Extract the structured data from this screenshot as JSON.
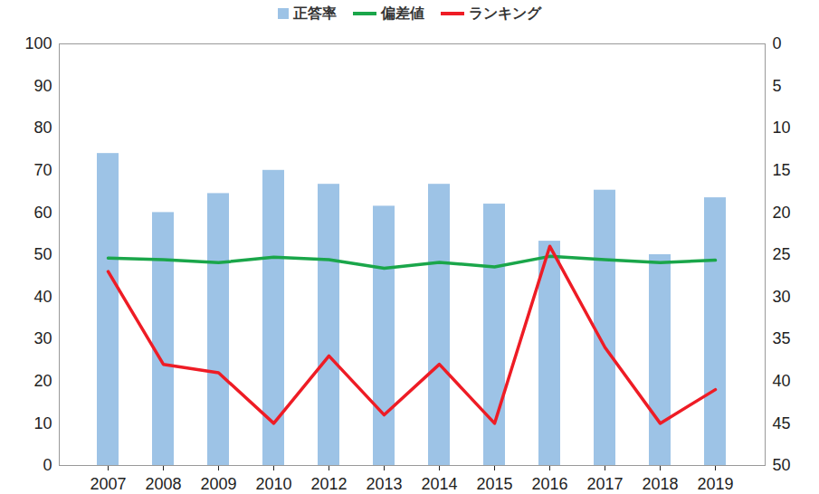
{
  "chart_data": {
    "type": "bar",
    "categories": [
      "2007",
      "2008",
      "2009",
      "2010",
      "2012",
      "2013",
      "2014",
      "2015",
      "2016",
      "2017",
      "2018",
      "2019"
    ],
    "series": [
      {
        "name": "正答率",
        "type": "bar",
        "color": "#9dc3e6",
        "values": [
          74,
          60,
          64.5,
          70,
          66.7,
          61.5,
          66.7,
          62,
          53.2,
          65.3,
          50,
          63.5
        ]
      },
      {
        "name": "偏差値",
        "type": "line",
        "color": "#1aa64a",
        "values": [
          49.2,
          48.8,
          48.1,
          49.4,
          48.8,
          46.8,
          48.2,
          47.1,
          49.6,
          48.8,
          48.1,
          48.7
        ]
      },
      {
        "name": "ランキング",
        "type": "line",
        "color": "#ee1c25",
        "axis": "y2",
        "values": [
          27,
          38,
          39,
          45,
          37,
          44,
          38,
          45,
          24,
          36,
          45,
          41
        ]
      }
    ],
    "ylim": [
      0,
      100
    ],
    "yticks": [
      0,
      10,
      20,
      30,
      40,
      50,
      60,
      70,
      80,
      90,
      100
    ],
    "y2lim": [
      50,
      0
    ],
    "y2ticks": [
      0,
      5,
      10,
      15,
      20,
      25,
      30,
      35,
      40,
      45,
      50
    ],
    "grid": false,
    "legend": "top"
  }
}
